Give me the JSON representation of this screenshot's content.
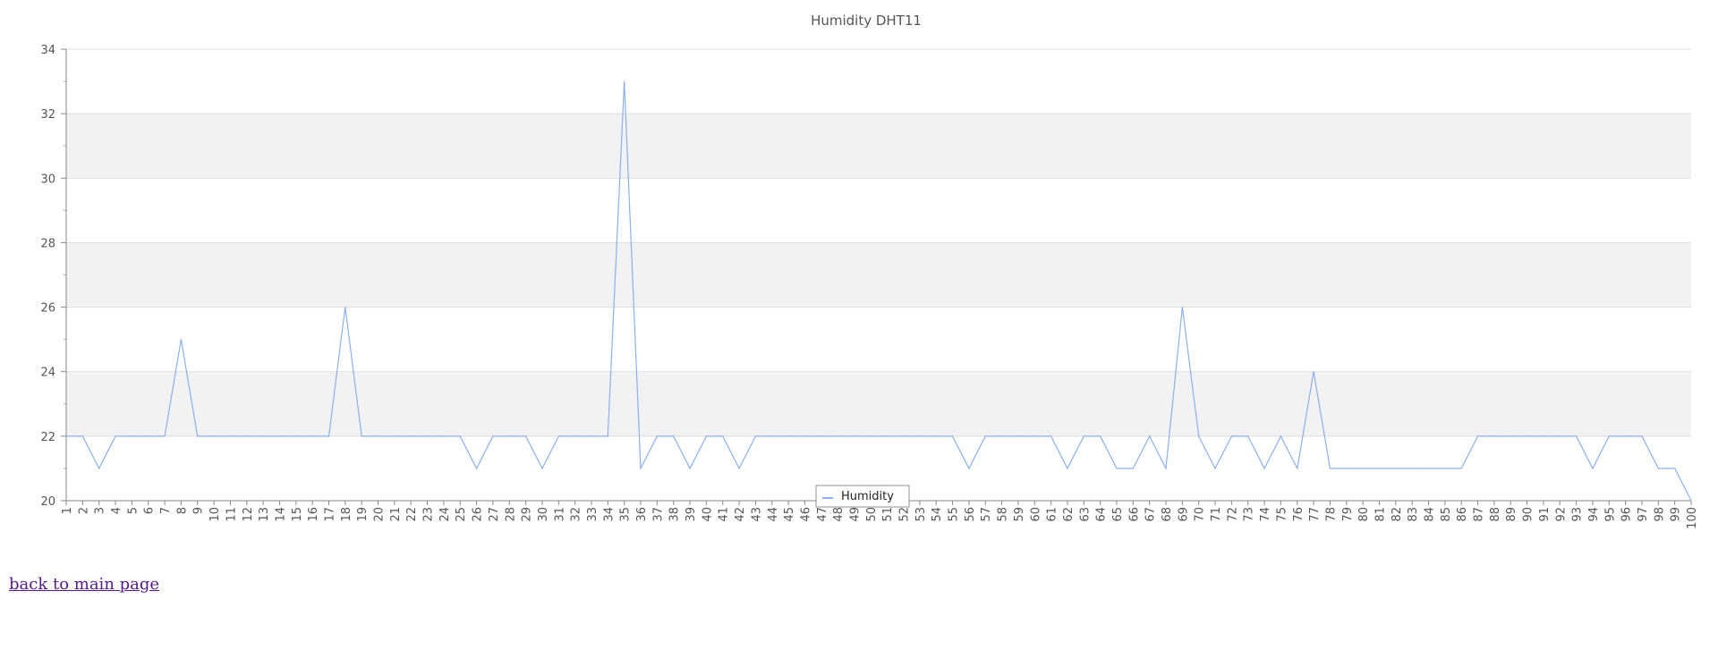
{
  "chart_data": {
    "type": "line",
    "title": "Humidity DHT11",
    "categories": [
      "1",
      "2",
      "3",
      "4",
      "5",
      "6",
      "7",
      "8",
      "9",
      "10",
      "11",
      "12",
      "13",
      "14",
      "15",
      "16",
      "17",
      "18",
      "19",
      "20",
      "21",
      "22",
      "23",
      "24",
      "25",
      "26",
      "27",
      "28",
      "29",
      "30",
      "31",
      "32",
      "33",
      "34",
      "35",
      "36",
      "37",
      "38",
      "39",
      "40",
      "41",
      "42",
      "43",
      "44",
      "45",
      "46",
      "47",
      "48",
      "49",
      "50",
      "51",
      "52",
      "53",
      "54",
      "55",
      "56",
      "57",
      "58",
      "59",
      "60",
      "61",
      "62",
      "63",
      "64",
      "65",
      "66",
      "67",
      "68",
      "69",
      "70",
      "71",
      "72",
      "73",
      "74",
      "75",
      "76",
      "77",
      "78",
      "79",
      "80",
      "81",
      "82",
      "83",
      "84",
      "85",
      "86",
      "87",
      "88",
      "89",
      "90",
      "91",
      "92",
      "93",
      "94",
      "95",
      "96",
      "97",
      "98",
      "99",
      "100"
    ],
    "series": [
      {
        "name": "Humidity",
        "color": "#8ab0ee",
        "values": [
          22,
          22,
          21,
          22,
          22,
          22,
          22,
          25,
          22,
          22,
          22,
          22,
          22,
          22,
          22,
          22,
          22,
          26,
          22,
          22,
          22,
          22,
          22,
          22,
          22,
          21,
          22,
          22,
          22,
          21,
          22,
          22,
          22,
          22,
          33,
          21,
          22,
          22,
          21,
          22,
          22,
          21,
          22,
          22,
          22,
          22,
          22,
          22,
          22,
          22,
          22,
          22,
          22,
          22,
          22,
          21,
          22,
          22,
          22,
          22,
          22,
          21,
          22,
          22,
          21,
          21,
          22,
          21,
          26,
          22,
          21,
          22,
          22,
          21,
          22,
          21,
          24,
          21,
          21,
          21,
          21,
          21,
          21,
          21,
          21,
          21,
          22,
          22,
          22,
          22,
          22,
          22,
          22,
          21,
          22,
          22,
          22,
          21,
          21,
          20
        ]
      }
    ],
    "ylim": [
      20,
      34
    ],
    "yticks": [
      20,
      22,
      24,
      26,
      28,
      30,
      32,
      34
    ],
    "xlabel": "",
    "ylabel": "",
    "grid": "horizontal alternating bands",
    "legend_position": "bottom-center"
  },
  "footer": {
    "back_link": "back to main page"
  }
}
